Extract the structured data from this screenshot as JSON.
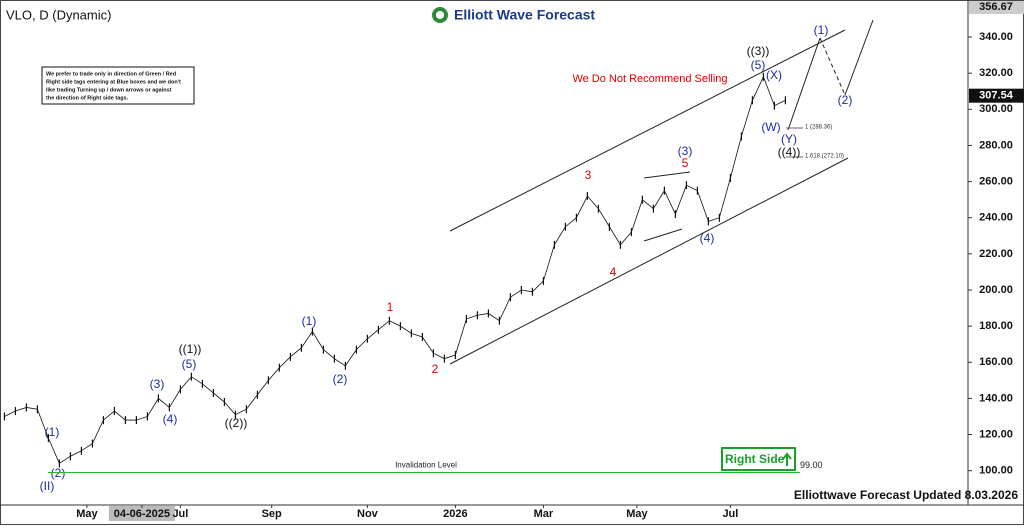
{
  "header": {
    "symbol": "VLO, D (Dynamic)",
    "brand": "Elliott Wave Forecast"
  },
  "note": [
    "We prefer to trade only in direction of Green / Red",
    "Right side tags entering at Blue boxes and we don't",
    "like trading Turning up / down arrows or against",
    "the direction of Right side tags."
  ],
  "chart_data": {
    "type": "price",
    "color": "#111111",
    "values": [
      130,
      133,
      135,
      134,
      118,
      104,
      108,
      111,
      115,
      128,
      133,
      128,
      128,
      130,
      140,
      135,
      145,
      152,
      148,
      143,
      138,
      131,
      134,
      142,
      150,
      157,
      163,
      168,
      177,
      167,
      162,
      158,
      167,
      173,
      178,
      183,
      180,
      176,
      174,
      165,
      162,
      164,
      184,
      186,
      187,
      183,
      196,
      200,
      199,
      205,
      225,
      235,
      240,
      252,
      245,
      235,
      225,
      232,
      250,
      245,
      255,
      242,
      258,
      255,
      238,
      240,
      262,
      285,
      305,
      318,
      302,
      305
    ],
    "xlim": [
      -0.4,
      87.6
    ],
    "xticks": [
      {
        "value": 7.5,
        "label": "May"
      },
      {
        "value": 12.5,
        "label": "04-06-2025"
      },
      {
        "value": 16,
        "label": "Jul"
      },
      {
        "value": 24.3,
        "label": "Sep"
      },
      {
        "value": 33,
        "label": "Nov"
      },
      {
        "value": 41,
        "label": "2026"
      },
      {
        "value": 49,
        "label": "Mar"
      },
      {
        "value": 57.5,
        "label": "May"
      },
      {
        "value": 66,
        "label": "Jul"
      }
    ],
    "ylim": [
      81,
      360.5
    ],
    "yticks": [
      {
        "value": 100,
        "label": "100.00"
      },
      {
        "value": 120,
        "label": "120.00"
      },
      {
        "value": 140,
        "label": "140.00"
      },
      {
        "value": 160,
        "label": "160.00"
      },
      {
        "value": 180,
        "label": "180.00"
      },
      {
        "value": 200,
        "label": "200.00"
      },
      {
        "value": 220,
        "label": "220.00"
      },
      {
        "value": 240,
        "label": "240.00"
      },
      {
        "value": 260,
        "label": "260.00"
      },
      {
        "value": 280,
        "label": "280.00"
      },
      {
        "value": 300,
        "label": "300.00"
      },
      {
        "value": 320,
        "label": "320.00"
      },
      {
        "value": 340,
        "label": "340.00"
      }
    ],
    "high_price": 356.67,
    "last_price": 307.54,
    "invalidation": {
      "label": "Invalidation Level",
      "value": 99,
      "value_label": "99.00"
    },
    "annotations": [
      "(II)",
      "(1)",
      "(2)",
      "(3)",
      "(4)",
      "(5)",
      "((1))",
      "((2))",
      "(1)",
      "(2)",
      "1",
      "2",
      "3",
      "4",
      "(3)",
      "5",
      "(4)",
      "((3))",
      "(5)",
      "(X)",
      "(W)",
      "(Y)",
      "((4))",
      "(1)",
      "(2)"
    ],
    "fib_labels": [
      "1 (288.36)",
      "1.618 (272.10)"
    ],
    "warning": "We Do Not Recommend Selling",
    "right_side": "Right Side"
  },
  "footer": "Elliottwave Forecast Updated 8.03.2026"
}
